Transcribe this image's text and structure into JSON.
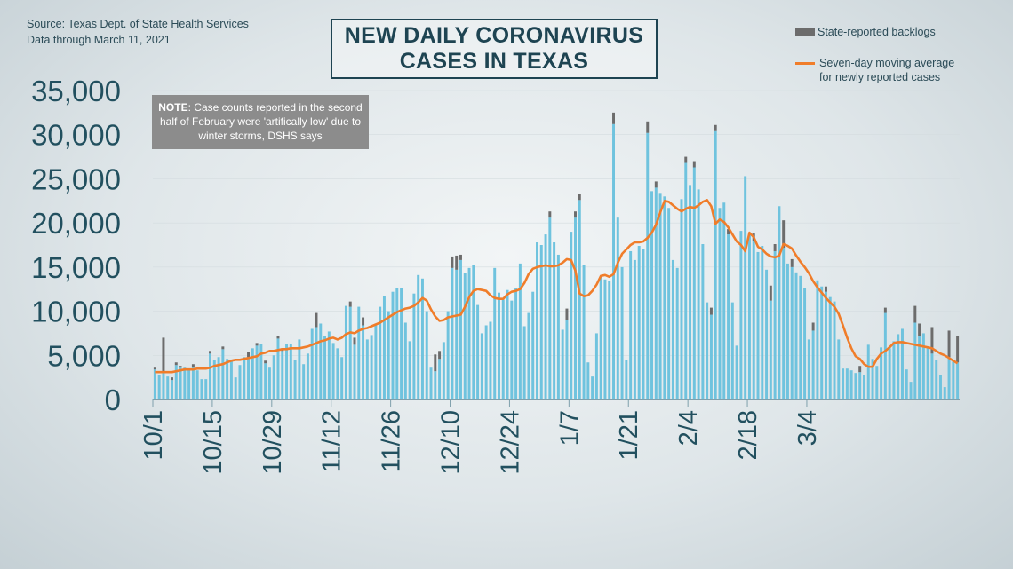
{
  "source": {
    "line1": "Source: Texas Dept. of State Health Services",
    "line2": "Data through  March 11, 2021"
  },
  "title": {
    "line1": "NEW DAILY CORONAVIRUS",
    "line2": "CASES IN TEXAS"
  },
  "legend": {
    "backlog": "State-reported backlogs",
    "moving_average_line1": "Seven-day moving average",
    "moving_average_line2": "for newly reported cases"
  },
  "note": {
    "label": "NOTE",
    "text": ": Case counts reported in the second half of February were 'artifically low' due to winter storms, DSHS says"
  },
  "colors": {
    "bars": "#6fc3de",
    "backlog": "#6c6c6c",
    "moving_average": "#f07d2a",
    "text": "#22505f"
  },
  "chart_data": {
    "type": "bar",
    "title": "NEW DAILY CORONAVIRUS CASES IN TEXAS",
    "ylim": [
      0,
      35000
    ],
    "y_ticks": [
      "0",
      "5,000",
      "10,000",
      "15,000",
      "20,000",
      "25,000",
      "30,000",
      "35,000"
    ],
    "x_ticks": [
      "10/1",
      "10/15",
      "10/29",
      "11/12",
      "11/26",
      "12/10",
      "12/24",
      "1/7",
      "1/21",
      "2/4",
      "2/18",
      "3/4"
    ],
    "start_date": "10/1",
    "x_labels_are_days_from_start": true,
    "series": [
      {
        "name": "New cases",
        "values": [
          3400,
          2800,
          3200,
          2600,
          2200,
          3900,
          3600,
          3600,
          3300,
          3700,
          3300,
          2300,
          2300,
          5200,
          4500,
          4800,
          5700,
          4600,
          4400,
          2500,
          3900,
          4800,
          4800,
          5800,
          6100,
          6300,
          4100,
          3600,
          5000,
          6900,
          5500,
          6300,
          6300,
          4500,
          6800,
          4000,
          5200,
          8000,
          8200,
          8600,
          7200,
          7700,
          6400,
          5800,
          4800,
          10600,
          10500,
          6200,
          10500,
          8400,
          6800,
          7300,
          8600,
          10500,
          11700,
          10000,
          12200,
          12600,
          12600,
          8700,
          6600,
          12000,
          14100,
          13700,
          10000,
          3600,
          3200,
          4600,
          6500,
          10000,
          14900,
          14700,
          15800,
          14300,
          14900,
          15200,
          10700,
          7500,
          8400,
          8800,
          14900,
          12100,
          11300,
          12400,
          11200,
          12600,
          15400,
          8300,
          9800,
          12200,
          17800,
          17500,
          18700,
          20600,
          17800,
          16400,
          7900,
          9000,
          19000,
          20600,
          22600,
          15200,
          4200,
          2600,
          7500,
          14000,
          13600,
          13400,
          31200,
          20600,
          15000,
          4500,
          16800,
          15800,
          17400,
          17000,
          30200,
          23600,
          24000,
          23400,
          23000,
          21700,
          15800,
          14900,
          22700,
          26800,
          24300,
          26300,
          23800,
          17600,
          11000,
          9600,
          30400,
          21700,
          22300,
          18700,
          11000,
          6100,
          19100,
          25300,
          18700,
          17900,
          16700,
          17400,
          14700,
          11200,
          16800,
          21900,
          17200,
          15400,
          15000,
          14400,
          14000,
          12600,
          6800,
          7800,
          13500,
          12800,
          12200,
          11600,
          11100,
          6800,
          3500,
          3500,
          3300,
          3000,
          3100,
          2800,
          6200,
          4600,
          3800,
          5900,
          9800,
          5800,
          6600,
          7400,
          8000,
          3400,
          2000,
          8700,
          7200,
          7500,
          6000,
          5200,
          4500,
          2800,
          1400,
          4800,
          4300,
          4200
        ],
        "backlog": [
          200,
          0,
          3800,
          0,
          300,
          300,
          200,
          0,
          0,
          300,
          0,
          0,
          0,
          300,
          0,
          0,
          300,
          0,
          0,
          0,
          0,
          0,
          600,
          0,
          300,
          0,
          300,
          0,
          0,
          300,
          300,
          0,
          0,
          0,
          0,
          0,
          0,
          0,
          1600,
          0,
          0,
          0,
          0,
          0,
          0,
          0,
          600,
          800,
          0,
          900,
          0,
          0,
          0,
          0,
          0,
          0,
          0,
          0,
          0,
          0,
          0,
          0,
          0,
          0,
          0,
          0,
          1900,
          900,
          0,
          0,
          1300,
          1600,
          600,
          0,
          0,
          0,
          0,
          0,
          0,
          0,
          0,
          0,
          0,
          0,
          0,
          0,
          0,
          0,
          0,
          0,
          0,
          0,
          0,
          700,
          0,
          0,
          0,
          1300,
          0,
          700,
          700,
          0,
          0,
          0,
          0,
          0,
          0,
          0,
          1300,
          0,
          0,
          0,
          0,
          0,
          0,
          0,
          1300,
          0,
          700,
          0,
          0,
          0,
          0,
          0,
          0,
          700,
          0,
          700,
          0,
          0,
          0,
          800,
          700,
          0,
          0,
          600,
          0,
          0,
          0,
          0,
          0,
          900,
          0,
          0,
          0,
          1700,
          800,
          0,
          3100,
          0,
          900,
          0,
          0,
          0,
          0,
          900,
          0,
          0,
          600,
          0,
          0,
          0,
          0,
          0,
          0,
          0,
          700,
          0,
          0,
          0,
          0,
          0,
          600,
          0,
          0,
          0,
          0,
          0,
          0,
          1900,
          1400,
          0,
          0,
          3000,
          0,
          0,
          0,
          3000,
          0,
          3000,
          0,
          0,
          0,
          1000,
          0,
          0,
          0,
          0,
          0,
          0,
          0,
          0,
          0,
          0,
          0,
          0,
          0,
          0
        ]
      },
      {
        "name": "Seven-day moving average for newly reported cases",
        "values": [
          3100,
          3100,
          3100,
          3100,
          3100,
          3200,
          3300,
          3400,
          3400,
          3400,
          3500,
          3500,
          3500,
          3600,
          3800,
          3900,
          4000,
          4200,
          4400,
          4500,
          4500,
          4600,
          4700,
          4800,
          4900,
          5200,
          5300,
          5500,
          5500,
          5600,
          5700,
          5700,
          5800,
          5800,
          5800,
          5900,
          6000,
          6200,
          6400,
          6600,
          6700,
          6900,
          7000,
          6800,
          7000,
          7400,
          7600,
          7500,
          7800,
          8000,
          8100,
          8300,
          8500,
          8700,
          9000,
          9300,
          9600,
          9900,
          10100,
          10300,
          10400,
          10600,
          11000,
          11500,
          11200,
          10200,
          9400,
          8900,
          9000,
          9300,
          9400,
          9500,
          9600,
          10500,
          11600,
          12300,
          12500,
          12400,
          12300,
          11800,
          11500,
          11400,
          11400,
          11900,
          12200,
          12300,
          12500,
          13200,
          14200,
          14800,
          15000,
          15100,
          15200,
          15100,
          15100,
          15200,
          15500,
          15900,
          15800,
          14600,
          12000,
          11700,
          11800,
          12300,
          13000,
          14000,
          14100,
          13900,
          14200,
          15500,
          16500,
          17000,
          17500,
          17800,
          17800,
          17900,
          18300,
          18900,
          19800,
          21200,
          22500,
          22400,
          22000,
          21600,
          21300,
          21600,
          21800,
          21700,
          22000,
          22400,
          22600,
          21900,
          19900,
          20400,
          20100,
          19500,
          18700,
          17900,
          17500,
          16800,
          18900,
          18400,
          17300,
          17000,
          16500,
          16200,
          16100,
          16300,
          17600,
          17400,
          17100,
          16300,
          15600,
          15000,
          14300,
          13400,
          12700,
          12100,
          11500,
          11000,
          10500,
          9700,
          8400,
          7000,
          5800,
          4900,
          4600,
          4000,
          3700,
          3700,
          4600,
          5200,
          5500,
          5900,
          6400,
          6500,
          6500,
          6400,
          6300,
          6200,
          6100,
          6000,
          5900,
          5800,
          5500,
          5200,
          5000,
          4700,
          4400,
          4100
        ]
      }
    ]
  }
}
